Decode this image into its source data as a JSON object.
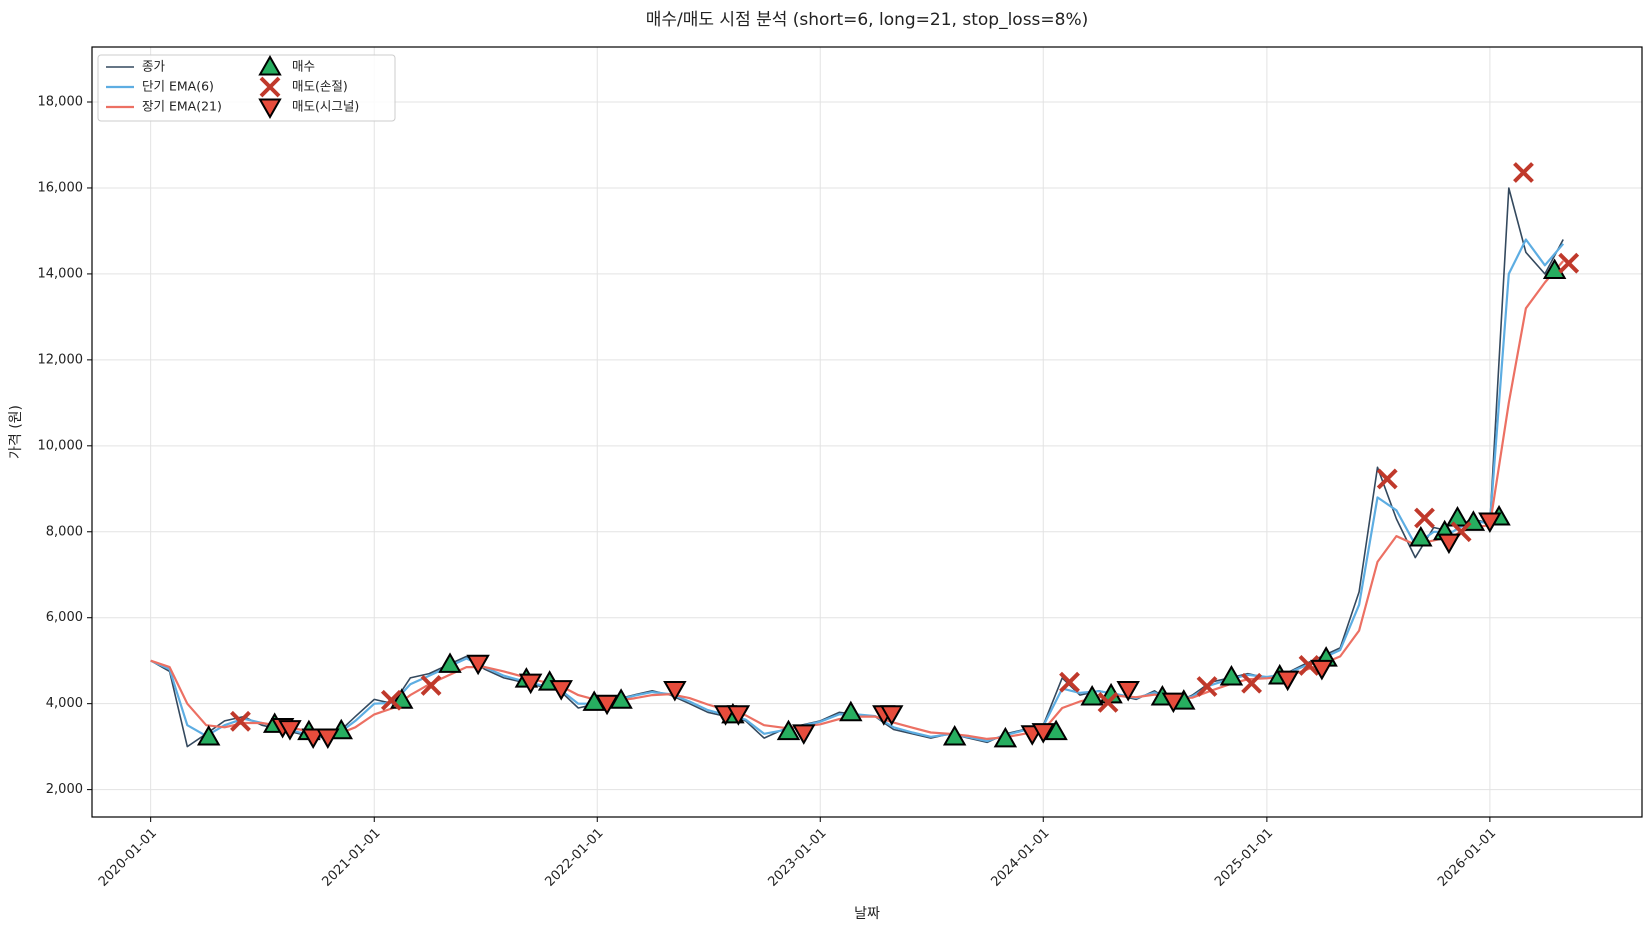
{
  "chart_data": {
    "type": "line",
    "title": "매수/매도 시점 분석 (short=6, long=21, stop_loss=8%)",
    "x_label": "날짜",
    "y_label": "가격 (원)",
    "xlim": [
      "2019-09-27",
      "2026-09-07"
    ],
    "xticks": [
      "2020-01-01",
      "2021-01-01",
      "2022-01-01",
      "2023-01-01",
      "2024-01-01",
      "2025-01-01",
      "2026-01-01"
    ],
    "ylim": [
      1363,
      19280
    ],
    "yticks": [
      {
        "value": 2000,
        "label": "2,000"
      },
      {
        "value": 4000,
        "label": "4,000"
      },
      {
        "value": 6000,
        "label": "6,000"
      },
      {
        "value": 8000,
        "label": "8,000"
      },
      {
        "value": 10000,
        "label": "10,000"
      },
      {
        "value": 12000,
        "label": "12,000"
      },
      {
        "value": 14000,
        "label": "14,000"
      },
      {
        "value": 16000,
        "label": "16,000"
      },
      {
        "value": 18000,
        "label": "18,000"
      }
    ],
    "grid": true,
    "legend": "upper left",
    "x": [
      "2020-01-01",
      "2020-02-01",
      "2020-03-01",
      "2020-04-01",
      "2020-05-01",
      "2020-06-01",
      "2020-07-01",
      "2020-08-01",
      "2020-09-01",
      "2020-10-01",
      "2020-11-01",
      "2020-12-01",
      "2021-01-01",
      "2021-02-01",
      "2021-03-01",
      "2021-04-01",
      "2021-05-01",
      "2021-06-01",
      "2021-07-01",
      "2021-08-01",
      "2021-09-01",
      "2021-10-01",
      "2021-11-01",
      "2021-12-01",
      "2022-01-01",
      "2022-02-01",
      "2022-03-01",
      "2022-04-01",
      "2022-05-01",
      "2022-06-01",
      "2022-07-01",
      "2022-08-01",
      "2022-09-01",
      "2022-10-01",
      "2022-11-01",
      "2022-12-01",
      "2023-01-01",
      "2023-02-01",
      "2023-03-01",
      "2023-04-01",
      "2023-05-01",
      "2023-06-01",
      "2023-07-01",
      "2023-08-01",
      "2023-09-01",
      "2023-10-01",
      "2023-11-01",
      "2023-12-01",
      "2024-01-01",
      "2024-02-01",
      "2024-03-01",
      "2024-04-01",
      "2024-05-01",
      "2024-06-01",
      "2024-07-01",
      "2024-08-01",
      "2024-09-01",
      "2024-10-01",
      "2024-11-01",
      "2024-12-01",
      "2025-01-01",
      "2025-02-01",
      "2025-03-01",
      "2025-04-01",
      "2025-05-01",
      "2025-06-01",
      "2025-07-01",
      "2025-08-01",
      "2025-09-01",
      "2025-10-01",
      "2025-11-01",
      "2025-12-01",
      "2026-01-01",
      "2026-02-01",
      "2026-03-01",
      "2026-04-01",
      "2026-05-01"
    ],
    "series": [
      {
        "name": "종가",
        "kind": "line",
        "color": "#34495e",
        "width": 1.6,
        "values": [
          5000,
          4750,
          3000,
          3300,
          3600,
          3700,
          3500,
          3400,
          3300,
          3200,
          3300,
          3700,
          4100,
          4000,
          4600,
          4700,
          4900,
          5100,
          4800,
          4600,
          4500,
          4400,
          4300,
          3900,
          4000,
          4100,
          4200,
          4300,
          4200,
          4000,
          3800,
          3700,
          3600,
          3200,
          3400,
          3500,
          3600,
          3800,
          3750,
          3700,
          3400,
          3300,
          3200,
          3300,
          3200,
          3100,
          3300,
          3400,
          3500,
          4600,
          4200,
          4300,
          4200,
          4100,
          4300,
          4000,
          4200,
          4500,
          4600,
          4700,
          4600,
          4700,
          4900,
          5100,
          5300,
          6600,
          9500,
          8300,
          7400,
          8100,
          8000,
          8300,
          8200,
          16000,
          14500,
          14000,
          14800
        ]
      },
      {
        "name": "단기 EMA(6)",
        "kind": "line",
        "color": "#5dade2",
        "width": 2.2,
        "values": [
          5000,
          4800,
          3500,
          3250,
          3500,
          3650,
          3550,
          3450,
          3330,
          3230,
          3280,
          3600,
          4000,
          4020,
          4450,
          4650,
          4850,
          5050,
          4850,
          4650,
          4530,
          4430,
          4330,
          4000,
          4000,
          4080,
          4180,
          4270,
          4220,
          4050,
          3850,
          3730,
          3630,
          3300,
          3380,
          3480,
          3580,
          3750,
          3750,
          3710,
          3450,
          3330,
          3230,
          3290,
          3220,
          3130,
          3270,
          3380,
          3480,
          4350,
          4250,
          4290,
          4220,
          4130,
          4260,
          4060,
          4170,
          4430,
          4570,
          4670,
          4620,
          4690,
          4860,
          5050,
          5250,
          6300,
          8800,
          8500,
          7700,
          8000,
          8000,
          8250,
          8200,
          14000,
          14800,
          14200,
          14700
        ]
      },
      {
        "name": "장기 EMA(21)",
        "kind": "line",
        "color": "#ec7063",
        "width": 2.2,
        "values": [
          5000,
          4850,
          4000,
          3500,
          3450,
          3550,
          3550,
          3480,
          3400,
          3300,
          3280,
          3450,
          3750,
          3900,
          4200,
          4450,
          4650,
          4850,
          4850,
          4750,
          4630,
          4520,
          4420,
          4200,
          4080,
          4070,
          4120,
          4200,
          4220,
          4130,
          3980,
          3850,
          3730,
          3500,
          3440,
          3460,
          3520,
          3640,
          3700,
          3700,
          3560,
          3440,
          3330,
          3300,
          3250,
          3180,
          3220,
          3300,
          3380,
          3900,
          4050,
          4150,
          4180,
          4150,
          4210,
          4120,
          4140,
          4300,
          4450,
          4570,
          4590,
          4640,
          4760,
          4920,
          5100,
          5700,
          7300,
          7900,
          7700,
          7800,
          7900,
          8100,
          8150,
          11000,
          13200,
          13800,
          14300
        ]
      },
      {
        "name": "매수",
        "kind": "scatter",
        "marker": "triangle-up",
        "color": "#27ae60",
        "x": [
          "2020-04-05",
          "2020-07-22",
          "2020-09-16",
          "2020-11-08",
          "2021-02-15",
          "2021-05-05",
          "2021-09-07",
          "2021-10-15",
          "2021-12-27",
          "2022-02-09",
          "2022-08-11",
          "2022-11-10",
          "2023-02-20",
          "2023-08-09",
          "2023-10-31",
          "2024-01-22",
          "2024-03-21",
          "2024-04-21",
          "2024-07-14",
          "2024-08-18",
          "2024-11-04",
          "2025-01-22",
          "2025-04-08",
          "2025-09-10",
          "2025-10-19",
          "2025-11-09",
          "2025-12-05",
          "2026-01-16",
          "2026-04-17"
        ],
        "values": [
          3225,
          3519,
          3350,
          3370,
          4080,
          4915,
          4570,
          4500,
          4030,
          4080,
          3740,
          3350,
          3790,
          3225,
          3180,
          3350,
          4155,
          4205,
          4155,
          4060,
          4620,
          4645,
          5060,
          7855,
          8000,
          8320,
          8220,
          8345,
          14080
        ]
      },
      {
        "name": "매도(손절)",
        "kind": "scatter",
        "marker": "x",
        "color": "#c0392b",
        "x": [
          "2020-05-27",
          "2021-01-29",
          "2021-04-04",
          "2024-02-13",
          "2024-04-16",
          "2024-09-25",
          "2024-12-07",
          "2025-03-11",
          "2025-07-17",
          "2025-09-16",
          "2025-11-15",
          "2026-02-25",
          "2026-05-10"
        ],
        "values": [
          3590,
          4080,
          4425,
          4500,
          4030,
          4400,
          4475,
          4890,
          9230,
          8320,
          8000,
          16360,
          14250
        ]
      },
      {
        "name": "매도(시그널)",
        "kind": "scatter",
        "marker": "triangle-down",
        "color": "#e74c3c",
        "x": [
          "2020-08-04",
          "2020-08-16",
          "2020-09-23",
          "2020-10-17",
          "2021-06-20",
          "2021-09-14",
          "2021-11-03",
          "2022-01-17",
          "2022-05-08",
          "2022-07-30",
          "2022-08-20",
          "2022-12-05",
          "2023-04-15",
          "2023-04-28",
          "2023-12-14",
          "2024-01-01",
          "2024-05-19",
          "2024-08-01",
          "2025-02-04",
          "2025-04-01",
          "2025-10-26",
          "2026-01-01"
        ],
        "values": [
          3470,
          3420,
          3225,
          3225,
          4940,
          4500,
          4350,
          4010,
          4330,
          3765,
          3765,
          3320,
          3765,
          3765,
          3300,
          3350,
          4330,
          4060,
          4570,
          4820,
          7760,
          8250
        ]
      }
    ]
  }
}
